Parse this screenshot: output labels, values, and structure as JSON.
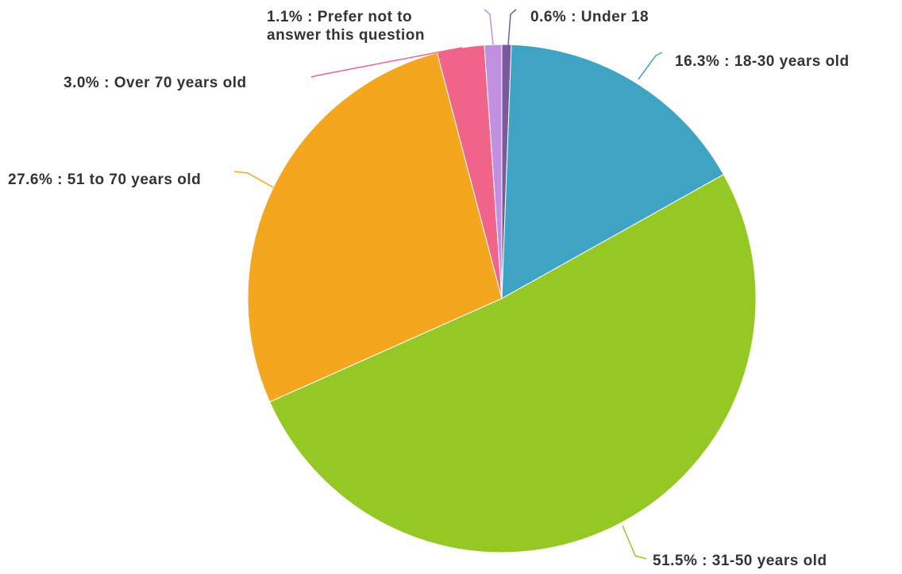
{
  "chart_data": {
    "type": "pie",
    "categories": [
      "Under 18",
      "18-30 years old",
      "31-50 years old",
      "51 to 70 years old",
      "Over 70 years old",
      "Prefer not to answer this question"
    ],
    "values": [
      0.6,
      16.3,
      51.5,
      27.6,
      3.0,
      1.1
    ],
    "value_labels": [
      "0.6%",
      "16.3%",
      "51.5%",
      "27.6%",
      "3.0%",
      "1.1%"
    ],
    "label_separator": " : ",
    "colors": [
      "#7a5a9e",
      "#3fa3c4",
      "#95c825",
      "#f4a61e",
      "#f0648a",
      "#c190e0"
    ]
  }
}
